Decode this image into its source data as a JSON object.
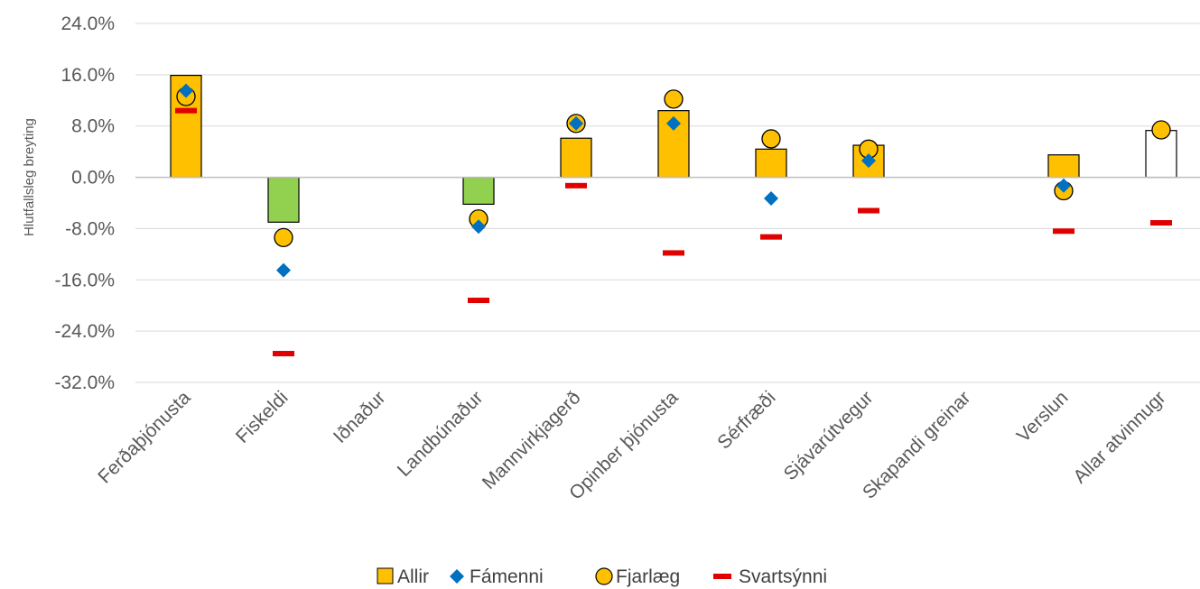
{
  "chart_data": {
    "type": "bar",
    "title": "",
    "ylabel": "Hlutfallsleg breyting",
    "xlabel": "",
    "ylim": [
      -32,
      24
    ],
    "yticks": [
      24,
      16,
      8,
      0,
      -8,
      -16,
      -24,
      -32
    ],
    "ytick_labels": [
      "24.0%",
      "16.0%",
      "8.0%",
      "0.0%",
      "-8.0%",
      "-16.0%",
      "-24.0%",
      "-32.0%"
    ],
    "grid": true,
    "legend_position": "bottom",
    "categories": [
      "Ferðaþjónusta",
      "Fiskeldi",
      "Iðnaður",
      "Landbúnaður",
      "Mannvirkjagerð",
      "Opinber þjónusta",
      "Sérfræði",
      "Sjávarútvegur",
      "Skapandi greinar",
      "Verslun",
      "Allar atvinnugr"
    ],
    "series": [
      {
        "name": "Allir",
        "kind": "bar",
        "values": [
          15.9,
          -7.0,
          null,
          -4.2,
          6.1,
          10.4,
          4.4,
          5.0,
          null,
          3.5,
          7.3
        ],
        "colors": [
          "#FFC000",
          "#92D050",
          null,
          "#92D050",
          "#FFC000",
          "#FFC000",
          "#FFC000",
          "#FFC000",
          null,
          "#FFC000",
          "#FFFFFF"
        ]
      },
      {
        "name": "Fámenni",
        "kind": "diamond",
        "color": "#0070C0",
        "values": [
          13.5,
          -14.5,
          null,
          -7.7,
          8.4,
          8.4,
          -3.3,
          2.6,
          null,
          -1.3,
          null
        ]
      },
      {
        "name": "Fjarlæg",
        "kind": "circle",
        "color": "#FFC000",
        "values": [
          12.6,
          -9.4,
          null,
          -6.5,
          8.4,
          12.2,
          6.0,
          4.4,
          null,
          -2.1,
          7.4
        ]
      },
      {
        "name": "Svartsýnni",
        "kind": "dash",
        "color": "#E00000",
        "values": [
          10.4,
          -27.5,
          null,
          -19.2,
          -1.3,
          -11.8,
          -9.3,
          -5.2,
          null,
          -8.4,
          -7.1
        ]
      }
    ]
  }
}
